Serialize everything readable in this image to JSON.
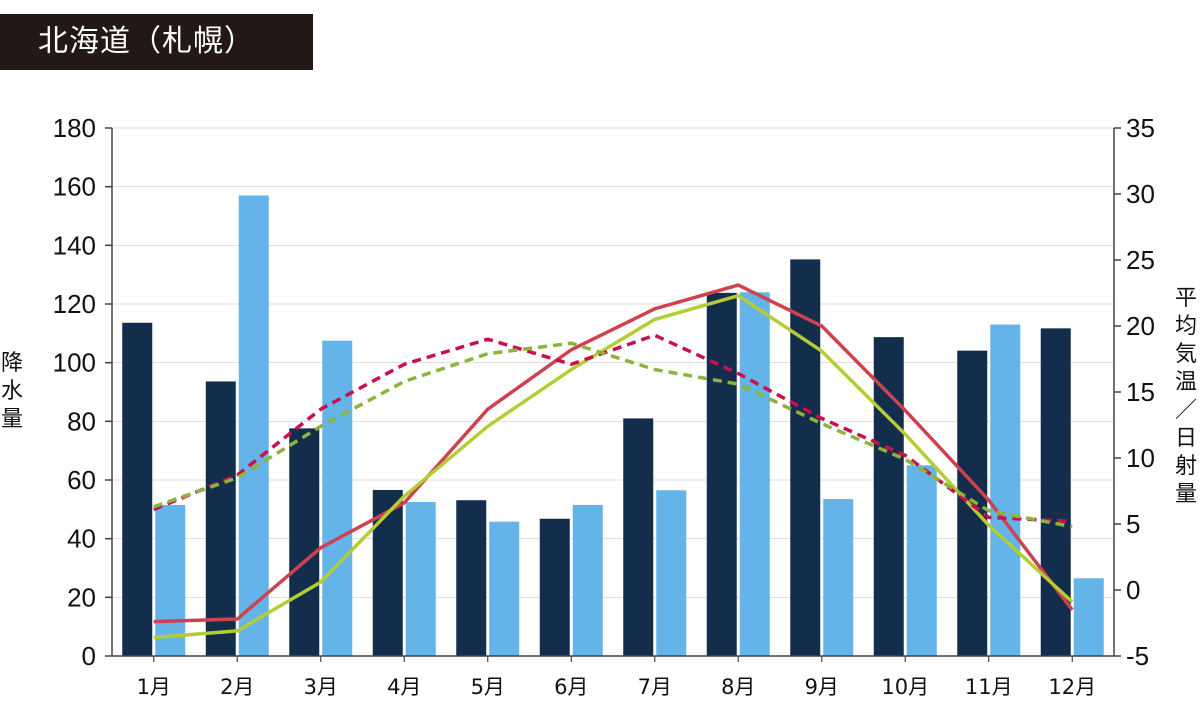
{
  "title": "北海道（札幌）",
  "chart_data": {
    "type": "bar",
    "categories": [
      "1月",
      "2月",
      "3月",
      "4月",
      "5月",
      "6月",
      "7月",
      "8月",
      "9月",
      "10月",
      "11月",
      "12月"
    ],
    "left_axis": {
      "label": "降水量",
      "range": [
        0,
        180
      ],
      "ticks": [
        "0",
        "20",
        "40",
        "60",
        "80",
        "100",
        "120",
        "140",
        "160",
        "180"
      ]
    },
    "right_axis": {
      "label": "平均気温／日射量",
      "range": [
        -5,
        35
      ],
      "ticks": [
        "-5",
        "0",
        "5",
        "10",
        "15",
        "20",
        "25",
        "30",
        "35"
      ]
    },
    "grid": true,
    "bars": [
      {
        "axis": "left",
        "color": "#132d4d",
        "values": [
          113.6,
          93.6,
          77.6,
          56.6,
          53.1,
          46.8,
          81.0,
          123.8,
          135.2,
          108.7,
          104.1,
          111.7
        ]
      },
      {
        "axis": "left",
        "color": "#64b4ea",
        "values": [
          51.5,
          157.0,
          107.5,
          52.5,
          45.8,
          51.5,
          56.5,
          124.0,
          53.5,
          65.0,
          113.0,
          26.5
        ]
      }
    ],
    "lines": [
      {
        "axis": "right",
        "color": "#cf4150",
        "dash": false,
        "values": [
          -2.4,
          -2.2,
          3.2,
          6.6,
          13.7,
          18.2,
          21.3,
          23.1,
          20.0,
          13.6,
          6.8,
          -1.5
        ]
      },
      {
        "axis": "right",
        "color": "#b4cd32",
        "dash": false,
        "values": [
          -3.6,
          -3.1,
          0.6,
          7.1,
          12.4,
          16.7,
          20.5,
          22.3,
          18.1,
          11.8,
          4.9,
          -0.9
        ]
      },
      {
        "axis": "right",
        "color": "#c8104d",
        "dash": true,
        "values": [
          6.1,
          8.7,
          13.7,
          17.1,
          19.0,
          17.1,
          19.3,
          16.4,
          13.0,
          10.2,
          5.5,
          5.2
        ]
      },
      {
        "axis": "right",
        "color": "#8cb43c",
        "dash": true,
        "values": [
          6.3,
          8.5,
          12.4,
          15.8,
          17.9,
          18.7,
          16.7,
          15.6,
          12.6,
          9.9,
          6.0,
          4.8
        ]
      }
    ]
  }
}
